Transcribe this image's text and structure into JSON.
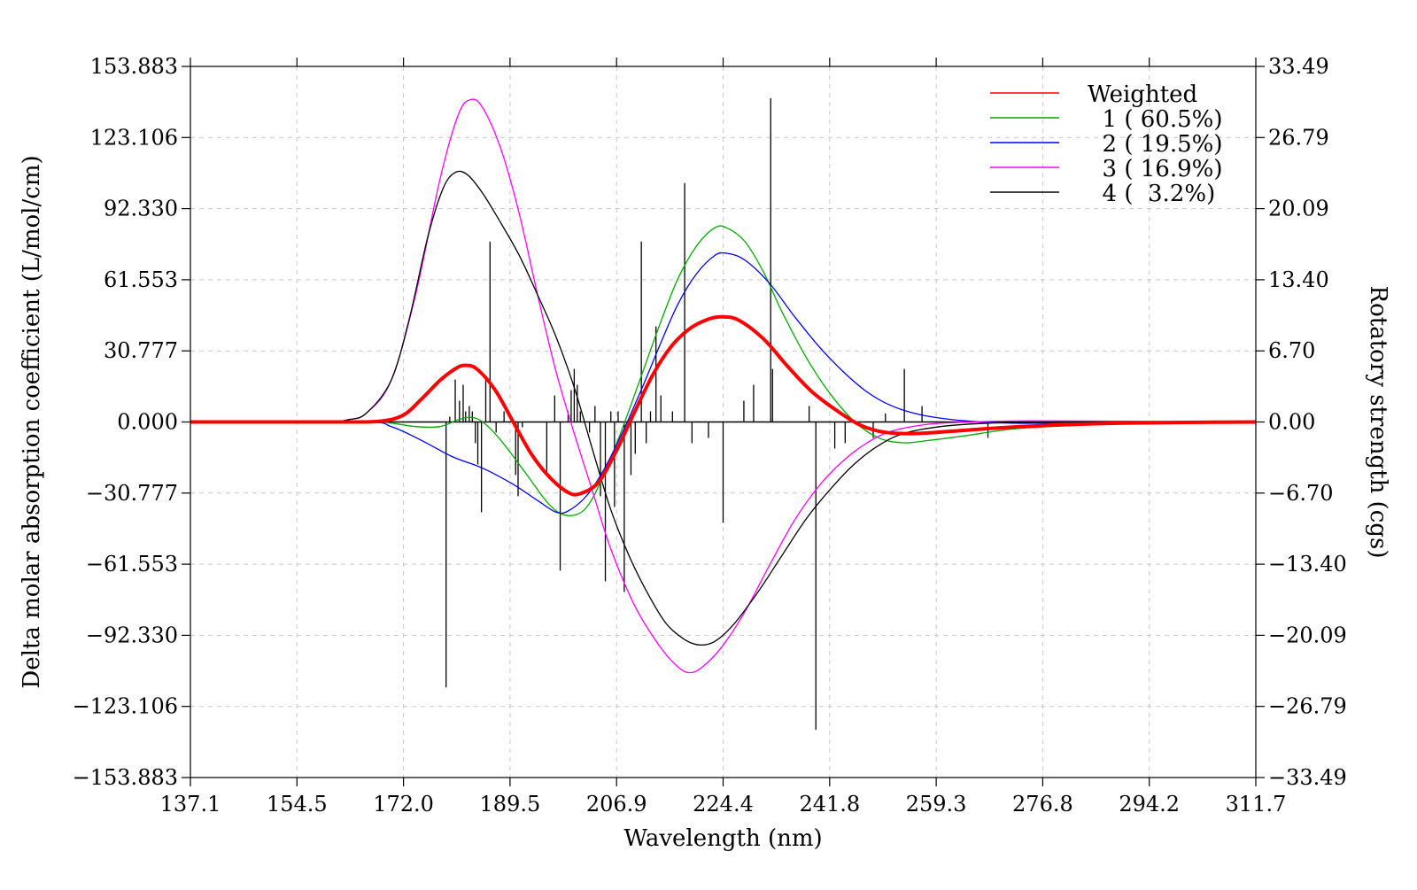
{
  "chart_data": {
    "type": "line",
    "title": "",
    "xlabel": "Wavelength (nm)",
    "ylabel_left": "Delta molar absorption coefficient (L/mol/cm)",
    "ylabel_right": "Rotatory strength (cgs)",
    "xlim": [
      137.1,
      311.7
    ],
    "ylim_left": [
      -153.883,
      153.883
    ],
    "ylim_right": [
      -33.49,
      33.49
    ],
    "grid": true,
    "legend_position": "top-right",
    "x_ticks": [
      "137.1",
      "154.5",
      "172.0",
      "189.5",
      "206.9",
      "224.4",
      "241.8",
      "259.3",
      "276.8",
      "294.2",
      "311.7"
    ],
    "y_ticks_left": [
      "153.883",
      "123.106",
      "92.330",
      "61.553",
      "30.777",
      "0.000",
      "−30.777",
      "−61.553",
      "−92.330",
      "−123.106",
      "−153.883"
    ],
    "y_ticks_right": [
      "33.49",
      "26.79",
      "20.09",
      "13.40",
      "6.70",
      "0.00",
      "−6.70",
      "−13.40",
      "−20.09",
      "−26.79",
      "−33.49"
    ],
    "series": [
      {
        "name": "Weighted",
        "color": "#ff0000",
        "thick": true,
        "points": [
          [
            137.1,
            0
          ],
          [
            160,
            0
          ],
          [
            168,
            0.3
          ],
          [
            172,
            3
          ],
          [
            175,
            10
          ],
          [
            178,
            18
          ],
          [
            180.5,
            23
          ],
          [
            182,
            24.5
          ],
          [
            184,
            23
          ],
          [
            187,
            14
          ],
          [
            190,
            0
          ],
          [
            193,
            -14
          ],
          [
            196,
            -24
          ],
          [
            199,
            -30.5
          ],
          [
            201,
            -31
          ],
          [
            204,
            -26
          ],
          [
            207,
            -12
          ],
          [
            210,
            5
          ],
          [
            213,
            21
          ],
          [
            216,
            33
          ],
          [
            219,
            40.5
          ],
          [
            222,
            44.5
          ],
          [
            224.4,
            45.5
          ],
          [
            227,
            44
          ],
          [
            231,
            36
          ],
          [
            235,
            24
          ],
          [
            239,
            13
          ],
          [
            243,
            5
          ],
          [
            247,
            -1.5
          ],
          [
            251,
            -4.5
          ],
          [
            256,
            -5
          ],
          [
            262,
            -4
          ],
          [
            270,
            -2.5
          ],
          [
            280,
            -1.2
          ],
          [
            290,
            -0.5
          ],
          [
            300,
            -0.2
          ],
          [
            311.7,
            0
          ]
        ]
      },
      {
        "name": "1 ( 60.5%)",
        "color": "#00aa00",
        "thick": false,
        "points": [
          [
            137.1,
            0
          ],
          [
            165,
            0
          ],
          [
            170,
            -0.5
          ],
          [
            174,
            -2
          ],
          [
            178,
            -2
          ],
          [
            181,
            1
          ],
          [
            183,
            2
          ],
          [
            185,
            0
          ],
          [
            188,
            -8
          ],
          [
            192,
            -22
          ],
          [
            196,
            -36
          ],
          [
            199,
            -40.5
          ],
          [
            202,
            -37
          ],
          [
            205,
            -22
          ],
          [
            208,
            -2
          ],
          [
            211,
            20
          ],
          [
            214,
            42
          ],
          [
            217,
            62
          ],
          [
            220,
            76
          ],
          [
            223,
            84
          ],
          [
            225,
            84
          ],
          [
            228,
            78
          ],
          [
            231,
            65
          ],
          [
            234,
            48
          ],
          [
            238,
            28
          ],
          [
            242,
            12
          ],
          [
            246,
            0
          ],
          [
            250,
            -7
          ],
          [
            254,
            -9
          ],
          [
            258,
            -8
          ],
          [
            264,
            -6
          ],
          [
            272,
            -3
          ],
          [
            282,
            -1.5
          ],
          [
            295,
            -0.5
          ],
          [
            311.7,
            0
          ]
        ]
      },
      {
        "name": "2 ( 19.5%)",
        "color": "#0000ee",
        "thick": false,
        "points": [
          [
            137.1,
            0
          ],
          [
            165,
            0
          ],
          [
            170,
            -2
          ],
          [
            175,
            -8
          ],
          [
            180,
            -15
          ],
          [
            185,
            -20
          ],
          [
            190,
            -27
          ],
          [
            194,
            -34
          ],
          [
            197,
            -39
          ],
          [
            199,
            -38.5
          ],
          [
            202,
            -32
          ],
          [
            205,
            -20
          ],
          [
            208,
            -4
          ],
          [
            211,
            14
          ],
          [
            214,
            33
          ],
          [
            217,
            51
          ],
          [
            220,
            64
          ],
          [
            223,
            72
          ],
          [
            225,
            73
          ],
          [
            228,
            70
          ],
          [
            232,
            60
          ],
          [
            236,
            46
          ],
          [
            240,
            33
          ],
          [
            244,
            22
          ],
          [
            248,
            13
          ],
          [
            252,
            7
          ],
          [
            257,
            3
          ],
          [
            264,
            0.5
          ],
          [
            272,
            -0.5
          ],
          [
            285,
            -0.5
          ],
          [
            311.7,
            0
          ]
        ]
      },
      {
        "name": "3 ( 16.9%)",
        "color": "#ff00ff",
        "thick": false,
        "points": [
          [
            137.1,
            0
          ],
          [
            158,
            0
          ],
          [
            163,
            1
          ],
          [
            166,
            4
          ],
          [
            170,
            18
          ],
          [
            174,
            55
          ],
          [
            178,
            105
          ],
          [
            181,
            133
          ],
          [
            183,
            139.5
          ],
          [
            185,
            136
          ],
          [
            188,
            118
          ],
          [
            191,
            90
          ],
          [
            194,
            55
          ],
          [
            197,
            22
          ],
          [
            200,
            -5
          ],
          [
            203,
            -30
          ],
          [
            206,
            -55
          ],
          [
            210,
            -80
          ],
          [
            214,
            -97
          ],
          [
            217,
            -106
          ],
          [
            219,
            -108.5
          ],
          [
            221,
            -106
          ],
          [
            224,
            -98
          ],
          [
            228,
            -82
          ],
          [
            232,
            -62
          ],
          [
            236,
            -43
          ],
          [
            240,
            -28
          ],
          [
            244,
            -17
          ],
          [
            248,
            -9
          ],
          [
            252,
            -4
          ],
          [
            258,
            -1
          ],
          [
            265,
            0
          ],
          [
            275,
            0.5
          ],
          [
            290,
            0.3
          ],
          [
            311.7,
            0
          ]
        ]
      },
      {
        "name": "4 (  3.2%)",
        "color": "#000000",
        "thick": false,
        "points": [
          [
            137.1,
            0
          ],
          [
            158,
            0
          ],
          [
            163,
            1
          ],
          [
            166,
            4
          ],
          [
            170,
            18
          ],
          [
            173,
            45
          ],
          [
            176,
            80
          ],
          [
            178.5,
            101
          ],
          [
            180.5,
            108
          ],
          [
            182.5,
            107
          ],
          [
            185,
            99
          ],
          [
            188,
            86
          ],
          [
            191,
            72
          ],
          [
            194,
            55
          ],
          [
            197,
            37
          ],
          [
            200,
            15
          ],
          [
            203,
            -12
          ],
          [
            206,
            -38
          ],
          [
            209,
            -58
          ],
          [
            212,
            -74
          ],
          [
            215,
            -87
          ],
          [
            218,
            -94
          ],
          [
            220.5,
            -96.5
          ],
          [
            223,
            -95
          ],
          [
            226,
            -88
          ],
          [
            230,
            -74
          ],
          [
            234,
            -58
          ],
          [
            238,
            -42
          ],
          [
            242,
            -29
          ],
          [
            246,
            -18
          ],
          [
            250,
            -10
          ],
          [
            254,
            -5
          ],
          [
            260,
            -2
          ],
          [
            268,
            -0.5
          ],
          [
            280,
            0
          ],
          [
            311.7,
            0
          ]
        ]
      }
    ],
    "sticks": [
      {
        "x": 179,
        "y": -25
      },
      {
        "x": 179.6,
        "y": 0.5
      },
      {
        "x": 180.5,
        "y": 4
      },
      {
        "x": 181.2,
        "y": 2
      },
      {
        "x": 181.8,
        "y": 3.5
      },
      {
        "x": 182.2,
        "y": 1
      },
      {
        "x": 182.8,
        "y": 1.5
      },
      {
        "x": 183.3,
        "y": 1
      },
      {
        "x": 183.8,
        "y": -2
      },
      {
        "x": 184.2,
        "y": -4
      },
      {
        "x": 184.8,
        "y": -8.5
      },
      {
        "x": 185.5,
        "y": 4
      },
      {
        "x": 186.2,
        "y": 17
      },
      {
        "x": 187.2,
        "y": -1
      },
      {
        "x": 188.5,
        "y": 1
      },
      {
        "x": 190.4,
        "y": -5
      },
      {
        "x": 190.8,
        "y": -7
      },
      {
        "x": 191.5,
        "y": -0.5
      },
      {
        "x": 195.5,
        "y": -5
      },
      {
        "x": 196.8,
        "y": 2.5
      },
      {
        "x": 197.7,
        "y": -14
      },
      {
        "x": 199,
        "y": 1
      },
      {
        "x": 199.5,
        "y": 3
      },
      {
        "x": 200,
        "y": 5
      },
      {
        "x": 200.5,
        "y": 3.5
      },
      {
        "x": 201,
        "y": 1
      },
      {
        "x": 202.5,
        "y": -1
      },
      {
        "x": 203.4,
        "y": 1.5
      },
      {
        "x": 204.3,
        "y": -7
      },
      {
        "x": 205.1,
        "y": -15
      },
      {
        "x": 206,
        "y": 1
      },
      {
        "x": 206.6,
        "y": -8
      },
      {
        "x": 207.2,
        "y": 1
      },
      {
        "x": 208.2,
        "y": -16
      },
      {
        "x": 209.3,
        "y": -5
      },
      {
        "x": 210,
        "y": -3
      },
      {
        "x": 211,
        "y": 17
      },
      {
        "x": 211.8,
        "y": -2
      },
      {
        "x": 212.5,
        "y": 1
      },
      {
        "x": 213.4,
        "y": 9
      },
      {
        "x": 214.2,
        "y": 2.5
      },
      {
        "x": 216.1,
        "y": 1
      },
      {
        "x": 218.1,
        "y": 22.5
      },
      {
        "x": 219.3,
        "y": -2
      },
      {
        "x": 222,
        "y": -1.5
      },
      {
        "x": 224.4,
        "y": -9.5
      },
      {
        "x": 227.8,
        "y": 2
      },
      {
        "x": 229.4,
        "y": 3.5
      },
      {
        "x": 232.2,
        "y": 30.5
      },
      {
        "x": 232.5,
        "y": 5
      },
      {
        "x": 238.5,
        "y": 1.5
      },
      {
        "x": 239.6,
        "y": -29
      },
      {
        "x": 242.7,
        "y": -2.5
      },
      {
        "x": 244.4,
        "y": -2
      },
      {
        "x": 249,
        "y": -1.5
      },
      {
        "x": 251,
        "y": 0.8
      },
      {
        "x": 254.1,
        "y": 5
      },
      {
        "x": 257,
        "y": 1.5
      },
      {
        "x": 267.8,
        "y": -1.5
      }
    ]
  }
}
